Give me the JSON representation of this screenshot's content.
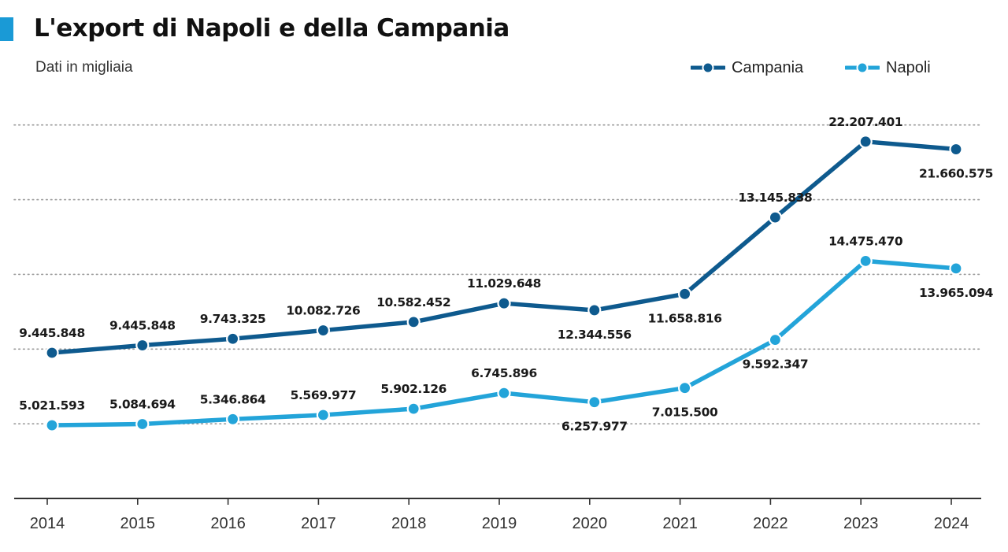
{
  "header": {
    "title": "L'export di Napoli e della Campania",
    "subtitle": "Dati in migliaia"
  },
  "colors": {
    "campania": "#0e5a8e",
    "napoli": "#23a4d9",
    "accent": "#1a9ad6",
    "grid": "#9a9a9a",
    "axis": "#333333"
  },
  "chart_data": {
    "type": "line",
    "title": "L'export di Napoli e della Campania",
    "subtitle": "Dati in migliaia",
    "xlabel": "",
    "ylabel": "",
    "grid": true,
    "legend_position": "top-right",
    "categories": [
      "2014",
      "2015",
      "2016",
      "2017",
      "2018",
      "2019",
      "2020",
      "2021",
      "2022",
      "2023",
      "2024"
    ],
    "series": [
      {
        "name": "Campania",
        "color": "#0e5a8e",
        "values": [
          9445848,
          9445848,
          9743325,
          10082726,
          10582452,
          11029648,
          12344556,
          11658816,
          13145838,
          22207401,
          21660575
        ],
        "labels": [
          "9.445.848",
          "9.445.848",
          "9.743.325",
          "10.082.726",
          "10.582.452",
          "11.029.648",
          "12.344.556",
          "11.658.816",
          "13.145.838",
          "22.207.401",
          "21.660.575"
        ],
        "label_side": [
          "above",
          "above",
          "above",
          "above",
          "above",
          "above",
          "below",
          "below",
          "above",
          "above",
          "below"
        ],
        "plotted_levels": [
          8900000,
          9300000,
          9650000,
          10100000,
          10550000,
          11550000,
          11180000,
          12050000,
          16150000,
          20210000,
          19800000
        ]
      },
      {
        "name": "Napoli",
        "color": "#23a4d9",
        "values": [
          5021593,
          5084694,
          5346864,
          5569977,
          5902126,
          6745896,
          6257977,
          7015500,
          9592347,
          14475470,
          13965094
        ],
        "labels": [
          "5.021.593",
          "5.084.694",
          "5.346.864",
          "5.569.977",
          "5.902.126",
          "6.745.896",
          "6.257.977",
          "7.015.500",
          "9.592.347",
          "14.475.470",
          "13.965.094"
        ],
        "label_side": [
          "above",
          "above",
          "above",
          "above",
          "above",
          "above",
          "below",
          "below",
          "below",
          "above",
          "below"
        ],
        "plotted_levels": [
          5020000,
          5084000,
          5346000,
          5570000,
          5902000,
          6746000,
          6258000,
          7016000,
          9592000,
          13820000,
          13420000
        ]
      }
    ],
    "ylim": [
      1100000,
      22100000
    ],
    "gridlines": [
      1100000,
      5100000,
      9100000,
      13100000,
      17100000,
      21100000
    ]
  }
}
